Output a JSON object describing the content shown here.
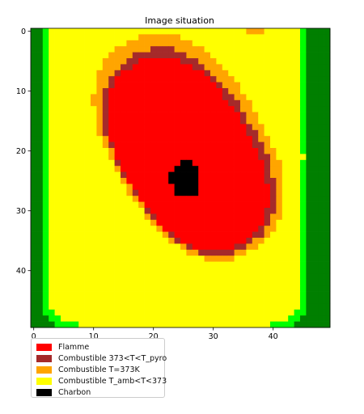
{
  "chart_data": {
    "type": "heatmap",
    "title": "Image situation",
    "xlabel": "",
    "ylabel": "",
    "grid_size": [
      50,
      50
    ],
    "x_ticks": [
      0,
      10,
      20,
      30,
      40
    ],
    "y_ticks": [
      0,
      10,
      20,
      30,
      40
    ],
    "xlim": [
      -0.5,
      49.5
    ],
    "ylim": [
      49.5,
      -0.5
    ],
    "legend_position": "below-left",
    "categories": [
      {
        "name": "Flamme",
        "color": "#ff0000"
      },
      {
        "name": "Combustible 373<T<T_pyro",
        "color": "#a52a2a"
      },
      {
        "name": "Combustible T=373K",
        "color": "#ffa500"
      },
      {
        "name": "Combustible T_amb<T<373",
        "color": "#ffff00"
      },
      {
        "name": "Charbon",
        "color": "#000000"
      }
    ],
    "unlabeled_colors": {
      "background": "#007f00",
      "edge": "#00ff00"
    },
    "regions": {
      "yellow": {
        "cx": 23.6,
        "cy": 20.8,
        "a": 21.4,
        "b": 28.4,
        "tilt_deg": 0,
        "n": 10
      },
      "orange": {
        "cx": 25.9,
        "cy": 19.3,
        "a": 12.5,
        "b": 20.2,
        "tilt_deg": 32,
        "n": 2.4
      },
      "brown": {
        "cx": 25.9,
        "cy": 20.2,
        "a": 11.3,
        "b": 18.5,
        "tilt_deg": 32,
        "n": 2.4
      },
      "red": {
        "cx": 25.6,
        "cy": 20.5,
        "a": 10.6,
        "b": 17.3,
        "tilt_deg": 32,
        "n": 2.4
      },
      "charbon": {
        "cx": 25.4,
        "cy": 24.7,
        "a": 2.6,
        "b": 3.2,
        "tilt_deg": 0,
        "n": 2
      }
    }
  }
}
